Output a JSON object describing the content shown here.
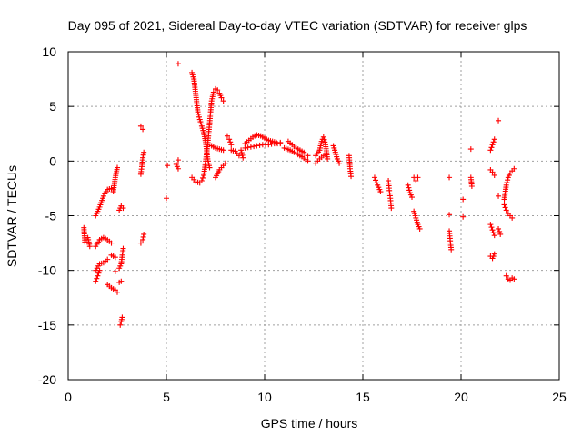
{
  "chart_data": {
    "type": "scatter",
    "title": "Day 095 of 2021, Sidereal Day-to-day VTEC variation (SDTVAR) for receiver glps",
    "xlabel": "GPS time / hours",
    "ylabel": "SDTVAR / TECUs",
    "xlim": [
      0,
      25
    ],
    "ylim": [
      -20,
      10
    ],
    "xticks": [
      0,
      5,
      10,
      15,
      20,
      25
    ],
    "yticks": [
      -20,
      -15,
      -10,
      -5,
      0,
      5,
      10
    ],
    "xtick_labels": [
      "0",
      "5",
      "10",
      "15",
      "20",
      "25"
    ],
    "ytick_labels": [
      "-20",
      "-15",
      "-10",
      "-5",
      "0",
      "5",
      "10"
    ],
    "grid": true,
    "marker": "plus",
    "color": "#ff0000",
    "segments": [
      [
        [
          0.8,
          -6.1
        ],
        [
          0.85,
          -7.4
        ],
        [
          1.0,
          -7.0
        ],
        [
          1.1,
          -7.8
        ]
      ],
      [
        [
          1.4,
          -5.0
        ],
        [
          1.6,
          -4.2
        ],
        [
          1.8,
          -3.2
        ],
        [
          2.0,
          -2.6
        ],
        [
          2.2,
          -2.5
        ]
      ],
      [
        [
          2.3,
          -2.8
        ],
        [
          2.4,
          -1.5
        ],
        [
          2.5,
          -0.6
        ]
      ],
      [
        [
          1.4,
          -7.8
        ],
        [
          1.6,
          -7.2
        ],
        [
          1.8,
          -7.0
        ],
        [
          2.0,
          -7.2
        ],
        [
          2.2,
          -7.5
        ]
      ],
      [
        [
          1.4,
          -10.0
        ],
        [
          1.6,
          -9.4
        ],
        [
          1.8,
          -9.3
        ],
        [
          2.0,
          -9.0
        ]
      ],
      [
        [
          1.4,
          -11.0
        ],
        [
          1.5,
          -10.5
        ],
        [
          1.6,
          -10.0
        ]
      ],
      [
        [
          2.0,
          -11.3
        ],
        [
          2.2,
          -11.6
        ],
        [
          2.4,
          -11.8
        ],
        [
          2.5,
          -12.0
        ]
      ],
      [
        [
          2.2,
          -8.6
        ],
        [
          2.4,
          -8.8
        ]
      ],
      [
        [
          2.4,
          -10.1
        ]
      ],
      [
        [
          2.6,
          -9.8
        ],
        [
          2.7,
          -9.4
        ],
        [
          2.8,
          -8.0
        ]
      ],
      [
        [
          2.6,
          -11.1
        ],
        [
          2.7,
          -11.0
        ]
      ],
      [
        [
          2.6,
          -4.5
        ],
        [
          2.7,
          -4.1
        ],
        [
          2.8,
          -4.3
        ]
      ],
      [
        [
          2.65,
          -15.0
        ],
        [
          2.7,
          -14.7
        ],
        [
          2.75,
          -14.3
        ]
      ],
      [
        [
          3.7,
          3.2
        ],
        [
          3.8,
          2.9
        ]
      ],
      [
        [
          3.7,
          -1.2
        ],
        [
          3.75,
          -0.5
        ],
        [
          3.8,
          0.3
        ],
        [
          3.85,
          0.8
        ]
      ],
      [
        [
          3.7,
          -7.5
        ],
        [
          3.8,
          -7.2
        ],
        [
          3.85,
          -6.7
        ]
      ],
      [
        [
          5.0,
          -3.4
        ]
      ],
      [
        [
          5.05,
          -0.4
        ]
      ],
      [
        [
          5.5,
          -0.3
        ],
        [
          5.6,
          -0.7
        ]
      ],
      [
        [
          5.6,
          8.9
        ]
      ],
      [
        [
          5.6,
          0.1
        ]
      ],
      [
        [
          6.3,
          8.1
        ],
        [
          6.4,
          7.5
        ],
        [
          6.5,
          6.0
        ],
        [
          6.6,
          4.5
        ],
        [
          6.7,
          3.8
        ],
        [
          6.8,
          3.2
        ],
        [
          6.9,
          2.6
        ],
        [
          7.0,
          1.7
        ],
        [
          7.1,
          0.2
        ],
        [
          7.2,
          -0.6
        ]
      ],
      [
        [
          6.3,
          -1.5
        ],
        [
          6.5,
          -1.9
        ],
        [
          6.7,
          -2.0
        ],
        [
          6.8,
          -1.8
        ],
        [
          6.9,
          -1.3
        ],
        [
          7.0,
          0.0
        ],
        [
          7.1,
          1.5
        ],
        [
          7.2,
          3.5
        ],
        [
          7.3,
          5.5
        ],
        [
          7.4,
          6.3
        ],
        [
          7.5,
          6.6
        ],
        [
          7.6,
          6.5
        ],
        [
          7.7,
          6.2
        ],
        [
          7.8,
          5.8
        ],
        [
          7.9,
          5.5
        ]
      ],
      [
        [
          7.3,
          1.4
        ],
        [
          7.5,
          1.2
        ],
        [
          7.7,
          1.1
        ],
        [
          7.9,
          1.0
        ]
      ],
      [
        [
          7.5,
          -1.5
        ],
        [
          7.7,
          -0.8
        ],
        [
          7.9,
          -0.4
        ],
        [
          8.0,
          -0.2
        ]
      ],
      [
        [
          8.1,
          2.3
        ],
        [
          8.2,
          2.0
        ],
        [
          8.3,
          1.5
        ]
      ],
      [
        [
          8.3,
          1.0
        ],
        [
          8.5,
          0.9
        ],
        [
          8.7,
          0.5
        ]
      ],
      [
        [
          8.8,
          1.0
        ],
        [
          8.9,
          0.3
        ]
      ],
      [
        [
          9.0,
          1.6
        ],
        [
          9.2,
          1.9
        ],
        [
          9.4,
          2.2
        ],
        [
          9.6,
          2.4
        ],
        [
          9.8,
          2.3
        ],
        [
          10.0,
          2.1
        ],
        [
          10.2,
          1.9
        ],
        [
          10.4,
          1.8
        ],
        [
          10.6,
          1.7
        ],
        [
          10.8,
          1.7
        ]
      ],
      [
        [
          9.0,
          1.2
        ],
        [
          9.3,
          1.3
        ],
        [
          9.6,
          1.4
        ],
        [
          9.9,
          1.5
        ],
        [
          10.2,
          1.5
        ],
        [
          10.5,
          1.6
        ],
        [
          10.8,
          1.6
        ]
      ],
      [
        [
          11.2,
          1.8
        ],
        [
          11.4,
          1.5
        ],
        [
          11.6,
          1.2
        ],
        [
          11.8,
          1.0
        ],
        [
          12.0,
          0.8
        ],
        [
          12.2,
          0.5
        ]
      ],
      [
        [
          11.0,
          1.2
        ],
        [
          11.3,
          1.0
        ],
        [
          11.6,
          0.7
        ],
        [
          11.9,
          0.4
        ],
        [
          12.2,
          0.0
        ]
      ],
      [
        [
          12.6,
          0.5
        ],
        [
          12.8,
          1.0
        ],
        [
          12.9,
          1.8
        ],
        [
          13.0,
          2.2
        ],
        [
          13.1,
          1.5
        ],
        [
          13.2,
          0.2
        ]
      ],
      [
        [
          12.6,
          -0.2
        ],
        [
          12.8,
          0.2
        ],
        [
          13.0,
          0.5
        ]
      ],
      [
        [
          13.5,
          1.4
        ],
        [
          13.6,
          0.8
        ],
        [
          13.7,
          0.2
        ],
        [
          13.8,
          -0.2
        ]
      ],
      [
        [
          14.3,
          0.5
        ],
        [
          14.35,
          -0.7
        ],
        [
          14.4,
          -1.4
        ]
      ],
      [
        [
          15.6,
          -1.5
        ],
        [
          15.7,
          -2.0
        ],
        [
          15.8,
          -2.4
        ],
        [
          15.9,
          -2.8
        ]
      ],
      [
        [
          16.3,
          -1.8
        ],
        [
          16.35,
          -2.7
        ],
        [
          16.4,
          -3.4
        ],
        [
          16.45,
          -4.3
        ]
      ],
      [
        [
          17.3,
          -2.2
        ],
        [
          17.4,
          -2.9
        ],
        [
          17.5,
          -3.3
        ]
      ],
      [
        [
          17.6,
          -1.5
        ],
        [
          17.7,
          -1.8
        ],
        [
          17.8,
          -1.5
        ]
      ],
      [
        [
          17.6,
          -4.6
        ],
        [
          17.7,
          -5.2
        ],
        [
          17.8,
          -5.8
        ],
        [
          17.9,
          -6.2
        ]
      ],
      [
        [
          19.4,
          -1.5
        ]
      ],
      [
        [
          19.4,
          -4.9
        ]
      ],
      [
        [
          19.4,
          -6.4
        ],
        [
          19.45,
          -7.3
        ],
        [
          19.5,
          -8.1
        ]
      ],
      [
        [
          20.1,
          -3.5
        ]
      ],
      [
        [
          20.1,
          -5.1
        ]
      ],
      [
        [
          20.5,
          1.1
        ]
      ],
      [
        [
          20.5,
          -1.5
        ],
        [
          20.55,
          -2.3
        ]
      ],
      [
        [
          21.5,
          1.0
        ],
        [
          21.6,
          1.5
        ],
        [
          21.7,
          2.0
        ]
      ],
      [
        [
          21.5,
          -0.8
        ],
        [
          21.6,
          -1.0
        ],
        [
          21.7,
          -1.3
        ]
      ],
      [
        [
          21.5,
          -5.8
        ],
        [
          21.6,
          -6.3
        ],
        [
          21.7,
          -6.8
        ]
      ],
      [
        [
          21.5,
          -8.7
        ],
        [
          21.6,
          -8.9
        ],
        [
          21.7,
          -8.5
        ]
      ],
      [
        [
          21.9,
          -3.2
        ]
      ],
      [
        [
          21.9,
          -6.2
        ],
        [
          22.0,
          -6.7
        ]
      ],
      [
        [
          21.9,
          3.7
        ]
      ],
      [
        [
          22.2,
          -3.5
        ],
        [
          22.3,
          -2.2
        ],
        [
          22.4,
          -1.5
        ],
        [
          22.5,
          -1.1
        ],
        [
          22.6,
          -0.9
        ],
        [
          22.7,
          -0.7
        ]
      ],
      [
        [
          22.2,
          -4.0
        ],
        [
          22.3,
          -4.5
        ],
        [
          22.4,
          -4.8
        ],
        [
          22.5,
          -5.0
        ],
        [
          22.6,
          -5.2
        ]
      ],
      [
        [
          22.3,
          -10.5
        ],
        [
          22.4,
          -10.8
        ],
        [
          22.5,
          -10.9
        ],
        [
          22.6,
          -10.7
        ],
        [
          22.7,
          -10.8
        ]
      ]
    ]
  }
}
